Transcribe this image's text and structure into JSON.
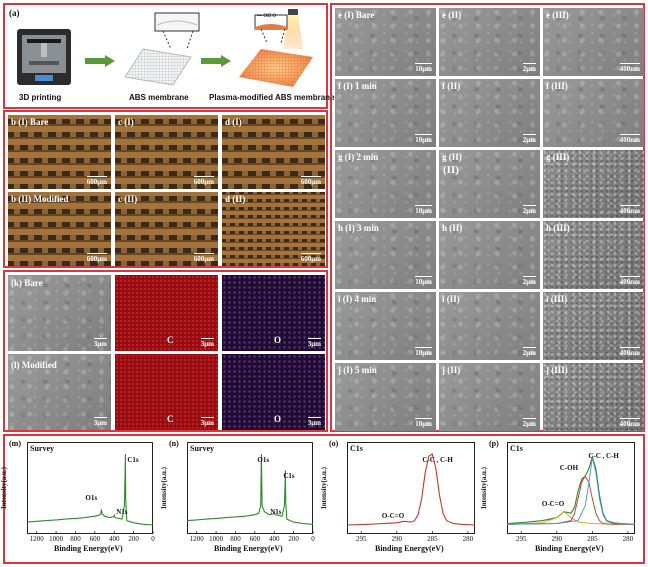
{
  "panel_a": {
    "label": "(a)",
    "steps": [
      "3D printing",
      "ABS membrane",
      "Plasma-modified ABS membrane"
    ],
    "chem_label": "— OH  O"
  },
  "panel_b": [
    {
      "label": "b (I)  Bare",
      "scale": "600μm"
    },
    {
      "label": "c (I)",
      "scale": "600μm"
    },
    {
      "label": "d (I)",
      "scale": "600μm"
    },
    {
      "label": "b (II)  Modified",
      "scale": "600μm"
    },
    {
      "label": "c (II)",
      "scale": "600μm"
    },
    {
      "label": "d (II)",
      "scale": "600μm"
    }
  ],
  "panel_k": [
    {
      "label": "(k)   Bare",
      "scale": "3μm",
      "kind": "sem"
    },
    {
      "label": "C",
      "scale": "3μm",
      "kind": "c"
    },
    {
      "label": "O",
      "scale": "3μm",
      "kind": "o"
    },
    {
      "label": "(l)    Modified",
      "scale": "3μm",
      "kind": "sem"
    },
    {
      "label": "C",
      "scale": "3μm",
      "kind": "c"
    },
    {
      "label": "O",
      "scale": "3μm",
      "kind": "o"
    }
  ],
  "sem_grid": {
    "rows": [
      {
        "labels": [
          "e (I)   Bare",
          "e (II)",
          "e (III)"
        ]
      },
      {
        "labels": [
          "f (I)    1 min",
          "f (II)",
          "f (III)"
        ]
      },
      {
        "labels": [
          "g (I)   2 min",
          "g (II)",
          "g (III)"
        ],
        "extra": "(II)"
      },
      {
        "labels": [
          "h (I)   3 min",
          "h (II)",
          "h (III)"
        ]
      },
      {
        "labels": [
          "i (I)    4 min",
          "i (II)",
          "i (III)"
        ]
      },
      {
        "labels": [
          "j (I)    5 min",
          "j (II)",
          "j (III)"
        ]
      }
    ],
    "scales": [
      "10μm",
      "2μm",
      "400nm"
    ]
  },
  "chart_data": [
    {
      "type": "line",
      "panel": "(m)",
      "title": "Survey",
      "xlabel": "Binding Energy(eV)",
      "ylabel": "Intensity(a.u.)",
      "xlim": [
        1300,
        0
      ],
      "xticks": [
        1200,
        1000,
        800,
        600,
        400,
        200,
        0
      ],
      "annotations": [
        {
          "text": "C1s",
          "x": 285
        },
        {
          "text": "O1s",
          "x": 532
        },
        {
          "text": "N1s",
          "x": 400
        }
      ],
      "series": [
        {
          "color": "#2e8b2e",
          "x": [
            1300,
            1200,
            1100,
            1000,
            900,
            800,
            700,
            600,
            560,
            540,
            532,
            525,
            500,
            450,
            410,
            400,
            390,
            320,
            295,
            288,
            285,
            282,
            270,
            200,
            100,
            0
          ],
          "y": [
            0.08,
            0.09,
            0.1,
            0.11,
            0.12,
            0.13,
            0.14,
            0.16,
            0.17,
            0.19,
            0.25,
            0.19,
            0.16,
            0.14,
            0.15,
            0.17,
            0.14,
            0.12,
            0.3,
            0.75,
            1.0,
            0.4,
            0.1,
            0.07,
            0.05,
            0.04
          ]
        }
      ]
    },
    {
      "type": "line",
      "panel": "(n)",
      "title": "Survey",
      "xlabel": "Binding Energy(eV)",
      "ylabel": "Intensity(a.u.)",
      "xlim": [
        1300,
        0
      ],
      "xticks": [
        1200,
        1000,
        800,
        600,
        400,
        200,
        0
      ],
      "annotations": [
        {
          "text": "O1s",
          "x": 532
        },
        {
          "text": "C1s",
          "x": 285
        },
        {
          "text": "N1s",
          "x": 400
        }
      ],
      "series": [
        {
          "color": "#2e8b2e",
          "x": [
            1300,
            1200,
            1100,
            1000,
            900,
            800,
            700,
            600,
            560,
            540,
            532,
            525,
            500,
            450,
            410,
            400,
            390,
            320,
            295,
            288,
            285,
            282,
            270,
            200,
            100,
            0
          ],
          "y": [
            0.1,
            0.11,
            0.12,
            0.13,
            0.14,
            0.15,
            0.16,
            0.18,
            0.2,
            0.3,
            1.0,
            0.3,
            0.22,
            0.18,
            0.19,
            0.21,
            0.18,
            0.16,
            0.3,
            0.6,
            0.78,
            0.35,
            0.12,
            0.08,
            0.06,
            0.05
          ]
        }
      ]
    },
    {
      "type": "line",
      "panel": "(o)",
      "title": "C1s",
      "xlabel": "Binding Energy(eV)",
      "ylabel": "Intensity(a.u.)",
      "xlim": [
        297,
        279
      ],
      "xticks": [
        295,
        290,
        285,
        280
      ],
      "annotations": [
        {
          "text": "C-C , C-H",
          "x": 285
        },
        {
          "text": "O-C=O",
          "x": 289
        }
      ],
      "series": [
        {
          "color": "#c0392b",
          "x": [
            297,
            294,
            292,
            290,
            289,
            288,
            287.5,
            287,
            286.5,
            286,
            285.5,
            285,
            284.5,
            284,
            283.5,
            283,
            282,
            281,
            279
          ],
          "y": [
            0.04,
            0.05,
            0.06,
            0.07,
            0.09,
            0.08,
            0.1,
            0.18,
            0.4,
            0.75,
            0.97,
            1.0,
            0.8,
            0.45,
            0.2,
            0.1,
            0.06,
            0.05,
            0.04
          ]
        }
      ]
    },
    {
      "type": "line",
      "panel": "(p)",
      "title": "C1s",
      "xlabel": "Binding Energy(eV)",
      "ylabel": "Intensity(a.u.)",
      "xlim": [
        297,
        279
      ],
      "xticks": [
        295,
        290,
        285,
        280
      ],
      "annotations": [
        {
          "text": "C-C , C-H",
          "x": 285
        },
        {
          "text": "C-OH",
          "x": 286.2
        },
        {
          "text": "O-C=O",
          "x": 289
        }
      ],
      "series": [
        {
          "color": "#2e8b2e",
          "x": [
            297,
            294,
            292,
            290,
            289,
            288,
            287.5,
            287,
            286.5,
            286,
            285.5,
            285,
            284.5,
            284,
            283.5,
            283,
            282,
            281,
            279
          ],
          "y": [
            0.06,
            0.08,
            0.1,
            0.14,
            0.22,
            0.2,
            0.28,
            0.5,
            0.66,
            0.7,
            0.8,
            0.96,
            0.8,
            0.45,
            0.2,
            0.1,
            0.07,
            0.06,
            0.05
          ]
        },
        {
          "color": "#d9a21f",
          "x": [
            297,
            292,
            290,
            289,
            288,
            287,
            285,
            282,
            279
          ],
          "y": [
            0.05,
            0.07,
            0.14,
            0.22,
            0.14,
            0.08,
            0.06,
            0.05,
            0.05
          ]
        },
        {
          "color": "#c0392b",
          "x": [
            297,
            290,
            288,
            287.5,
            287,
            286.5,
            286,
            285.5,
            285,
            284.5,
            284,
            283.5,
            282,
            279
          ],
          "y": [
            0.05,
            0.06,
            0.1,
            0.2,
            0.4,
            0.62,
            0.7,
            0.62,
            0.4,
            0.2,
            0.1,
            0.06,
            0.05,
            0.05
          ]
        },
        {
          "color": "#4a90c2",
          "x": [
            297,
            290,
            287,
            286,
            285.5,
            285,
            284.5,
            284,
            283.5,
            283,
            282,
            279
          ],
          "y": [
            0.05,
            0.06,
            0.1,
            0.3,
            0.6,
            0.95,
            0.75,
            0.4,
            0.18,
            0.09,
            0.06,
            0.05
          ]
        }
      ]
    }
  ]
}
